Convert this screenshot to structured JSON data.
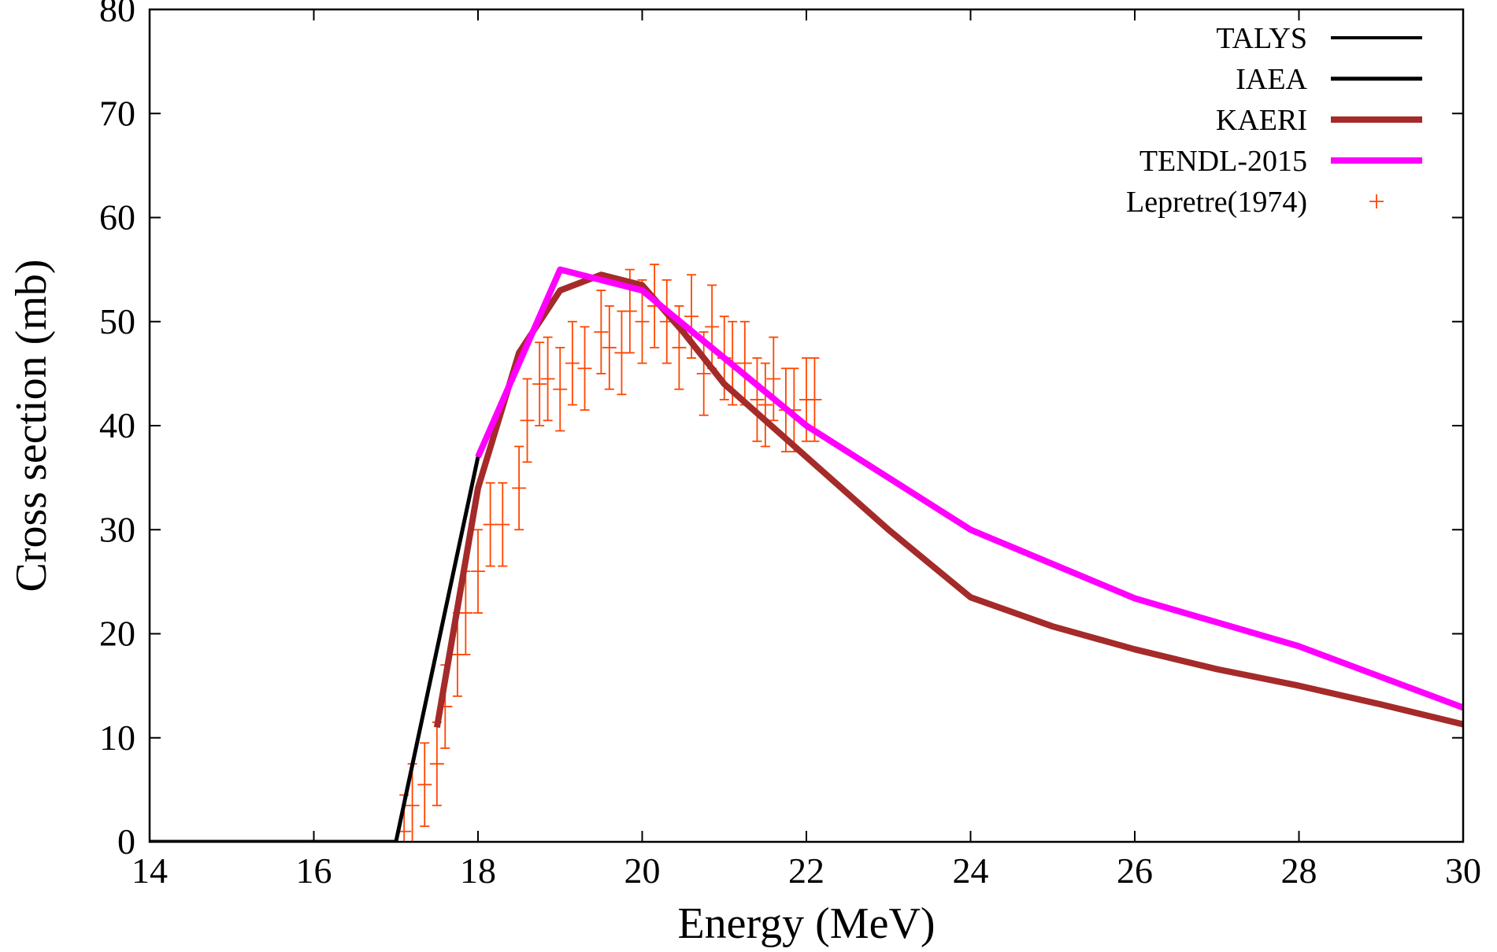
{
  "chart_data": {
    "type": "line",
    "xlabel": "Energy (MeV)",
    "ylabel": "Cross section (mb)",
    "xlim": [
      14,
      30
    ],
    "ylim": [
      0,
      80
    ],
    "xticks": [
      14,
      16,
      18,
      20,
      22,
      24,
      26,
      28,
      30
    ],
    "yticks": [
      0,
      10,
      20,
      30,
      40,
      50,
      60,
      70,
      80
    ],
    "grid": false,
    "legend_position": "top-right",
    "series": [
      {
        "name": "TALYS",
        "kind": "line",
        "color": "#000000",
        "x": [
          14,
          15,
          16,
          17,
          18
        ],
        "y": [
          0,
          0,
          0,
          0,
          37
        ]
      },
      {
        "name": "IAEA",
        "kind": "line",
        "color": "#000000",
        "x": [
          14,
          15,
          16,
          17,
          18
        ],
        "y": [
          0,
          0,
          0,
          0,
          37
        ]
      },
      {
        "name": "KAERI",
        "kind": "line",
        "color": "#a52a2a",
        "x": [
          17.5,
          18,
          18.5,
          19,
          19.5,
          20,
          20.5,
          21,
          22,
          23,
          24,
          25,
          26,
          27,
          28,
          29,
          30
        ],
        "y": [
          11,
          34,
          47,
          53,
          54.5,
          53.5,
          49,
          44,
          37,
          30,
          23.5,
          20.7,
          18.5,
          16.6,
          15,
          13.2,
          11.3
        ]
      },
      {
        "name": "TENDL-2015",
        "kind": "line",
        "color": "#ff00ff",
        "x": [
          18,
          19,
          20,
          22,
          24,
          26,
          28,
          30
        ],
        "y": [
          37,
          55,
          53,
          40,
          30,
          23.4,
          18.8,
          12.9
        ]
      },
      {
        "name": "Lepretre(1974)",
        "kind": "points-with-errorbars",
        "color": "#ff4500",
        "x": [
          17.1,
          17.2,
          17.35,
          17.5,
          17.6,
          17.75,
          17.85,
          18.0,
          18.15,
          18.3,
          18.5,
          18.6,
          18.75,
          18.85,
          19.0,
          19.15,
          19.3,
          19.5,
          19.6,
          19.75,
          19.85,
          20.0,
          20.15,
          20.3,
          20.45,
          20.6,
          20.75,
          20.85,
          21.0,
          21.1,
          21.25,
          21.4,
          21.5,
          21.6,
          21.75,
          21.85,
          22.0,
          22.1
        ],
        "y": [
          1,
          3.5,
          5.5,
          7.5,
          13,
          18,
          22,
          26,
          30.5,
          30.5,
          34,
          40.5,
          44,
          44.5,
          43.5,
          46,
          45.5,
          49,
          47.5,
          47,
          51,
          50,
          51.5,
          50,
          47.5,
          50.5,
          45,
          49.5,
          46.5,
          46,
          46,
          42.5,
          42,
          44.5,
          41.5,
          41.5,
          42.5,
          42.5
        ],
        "err": [
          3.5,
          4,
          4,
          4,
          4,
          4,
          4,
          4,
          4,
          4,
          4,
          4,
          4,
          4,
          4,
          4,
          4,
          4,
          4,
          4,
          4,
          4,
          4,
          4,
          4,
          4,
          4,
          4,
          4,
          4,
          4,
          4,
          4,
          4,
          4,
          4,
          4,
          4
        ]
      }
    ]
  }
}
